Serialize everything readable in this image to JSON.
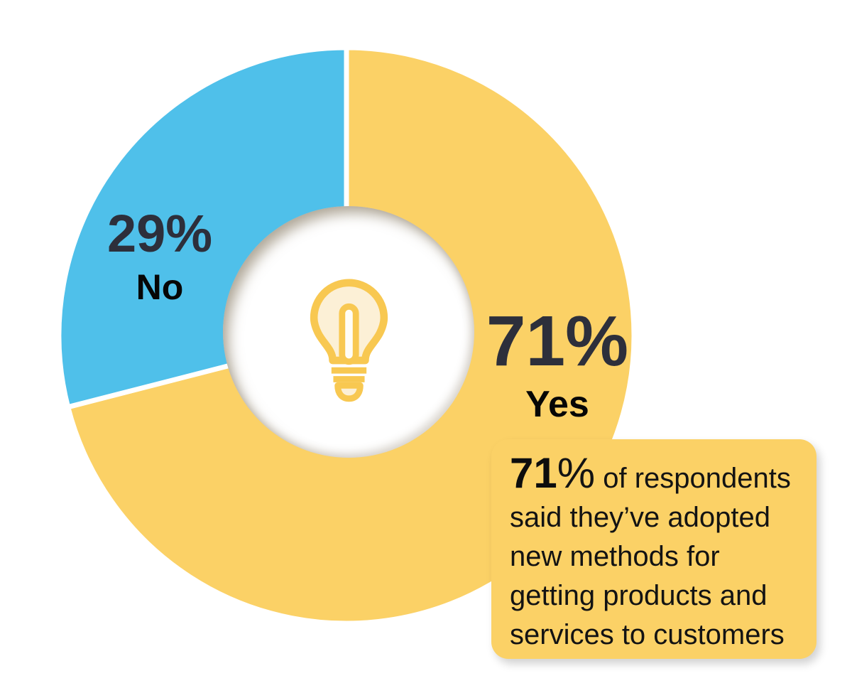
{
  "chart_data": {
    "type": "pie",
    "style": "donut",
    "title": "",
    "categories": [
      "Yes",
      "No"
    ],
    "values": [
      71,
      29
    ],
    "unit": "%",
    "colors": [
      "#fbd166",
      "#4fc0ea"
    ],
    "gap_color": "#ffffff",
    "start_angle_deg": 0,
    "direction": "clockwise",
    "donut_hole_ratio": 0.43,
    "legend_position": "none",
    "center_icon": "lightbulb-icon",
    "slice_labels": [
      {
        "value": "71%",
        "category": "Yes"
      },
      {
        "value": "29%",
        "category": "No"
      }
    ],
    "annotation": {
      "highlight": "71",
      "percent_sign": "%",
      "text": " of respondents said they’ve adopted new methods for getting products and services to customers"
    }
  },
  "icon_colors": {
    "bulb_stroke": "#f8c851",
    "bulb_fill": "#fcf0d6",
    "tube_fill": "#fffdf6"
  },
  "label_colors": {
    "percent_text": "#2d2f3b",
    "category_text": "#060606",
    "annotation_text": "#131313"
  }
}
